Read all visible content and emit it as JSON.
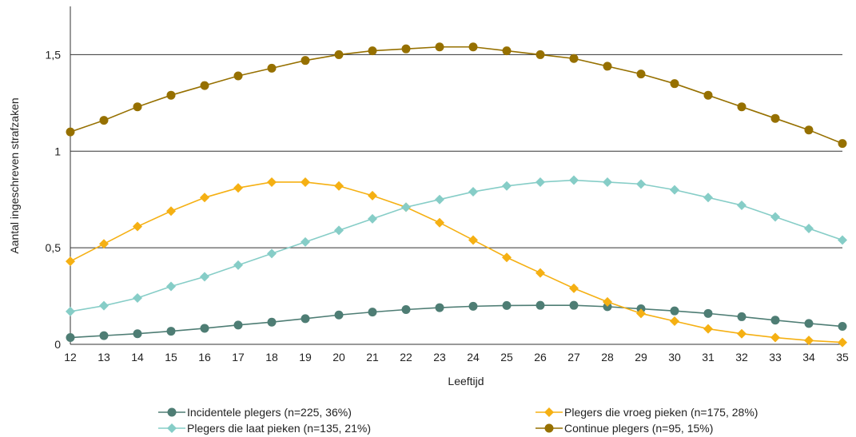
{
  "chart_data": {
    "type": "line",
    "xlabel": "Leeftijd",
    "ylabel": "Aantal ingeschreven strafzaken",
    "ylim": [
      0,
      1.75
    ],
    "y_ticks": [
      0,
      0.5,
      1,
      1.5
    ],
    "y_tick_labels": [
      "0",
      "0,5",
      "1",
      "1,5"
    ],
    "grid": "horizontal at 0,5 / 1 / 1,5",
    "legend_position": "bottom",
    "x": [
      12,
      13,
      14,
      15,
      16,
      17,
      18,
      19,
      20,
      21,
      22,
      23,
      24,
      25,
      26,
      27,
      28,
      29,
      30,
      31,
      32,
      33,
      34,
      35
    ],
    "series": [
      {
        "name": "Incidentele plegers (n=225, 36%)",
        "color": "#4e7d74",
        "marker": "circle",
        "values": [
          0.035,
          0.045,
          0.055,
          0.068,
          0.083,
          0.1,
          0.115,
          0.133,
          0.152,
          0.167,
          0.18,
          0.19,
          0.197,
          0.201,
          0.202,
          0.202,
          0.195,
          0.184,
          0.173,
          0.16,
          0.143,
          0.125,
          0.108,
          0.093
        ]
      },
      {
        "name": "Plegers die vroeg pieken (n=175, 28%)",
        "color": "#f5b013",
        "marker": "diamond",
        "values": [
          0.43,
          0.52,
          0.61,
          0.69,
          0.76,
          0.81,
          0.84,
          0.84,
          0.82,
          0.77,
          0.71,
          0.63,
          0.54,
          0.45,
          0.37,
          0.29,
          0.22,
          0.16,
          0.12,
          0.08,
          0.055,
          0.035,
          0.02,
          0.01
        ]
      },
      {
        "name": "Plegers die laat pieken (n=135, 21%)",
        "color": "#86cdc7",
        "marker": "diamond",
        "values": [
          0.17,
          0.2,
          0.24,
          0.3,
          0.35,
          0.41,
          0.47,
          0.53,
          0.59,
          0.65,
          0.71,
          0.75,
          0.79,
          0.82,
          0.84,
          0.85,
          0.84,
          0.83,
          0.8,
          0.76,
          0.72,
          0.66,
          0.6,
          0.54
        ]
      },
      {
        "name": "Continue plegers (n=95, 15%)",
        "color": "#967000",
        "marker": "circle",
        "values": [
          1.1,
          1.16,
          1.23,
          1.29,
          1.34,
          1.39,
          1.43,
          1.47,
          1.5,
          1.52,
          1.53,
          1.54,
          1.54,
          1.52,
          1.5,
          1.48,
          1.44,
          1.4,
          1.35,
          1.29,
          1.23,
          1.17,
          1.11,
          1.04
        ]
      }
    ]
  }
}
